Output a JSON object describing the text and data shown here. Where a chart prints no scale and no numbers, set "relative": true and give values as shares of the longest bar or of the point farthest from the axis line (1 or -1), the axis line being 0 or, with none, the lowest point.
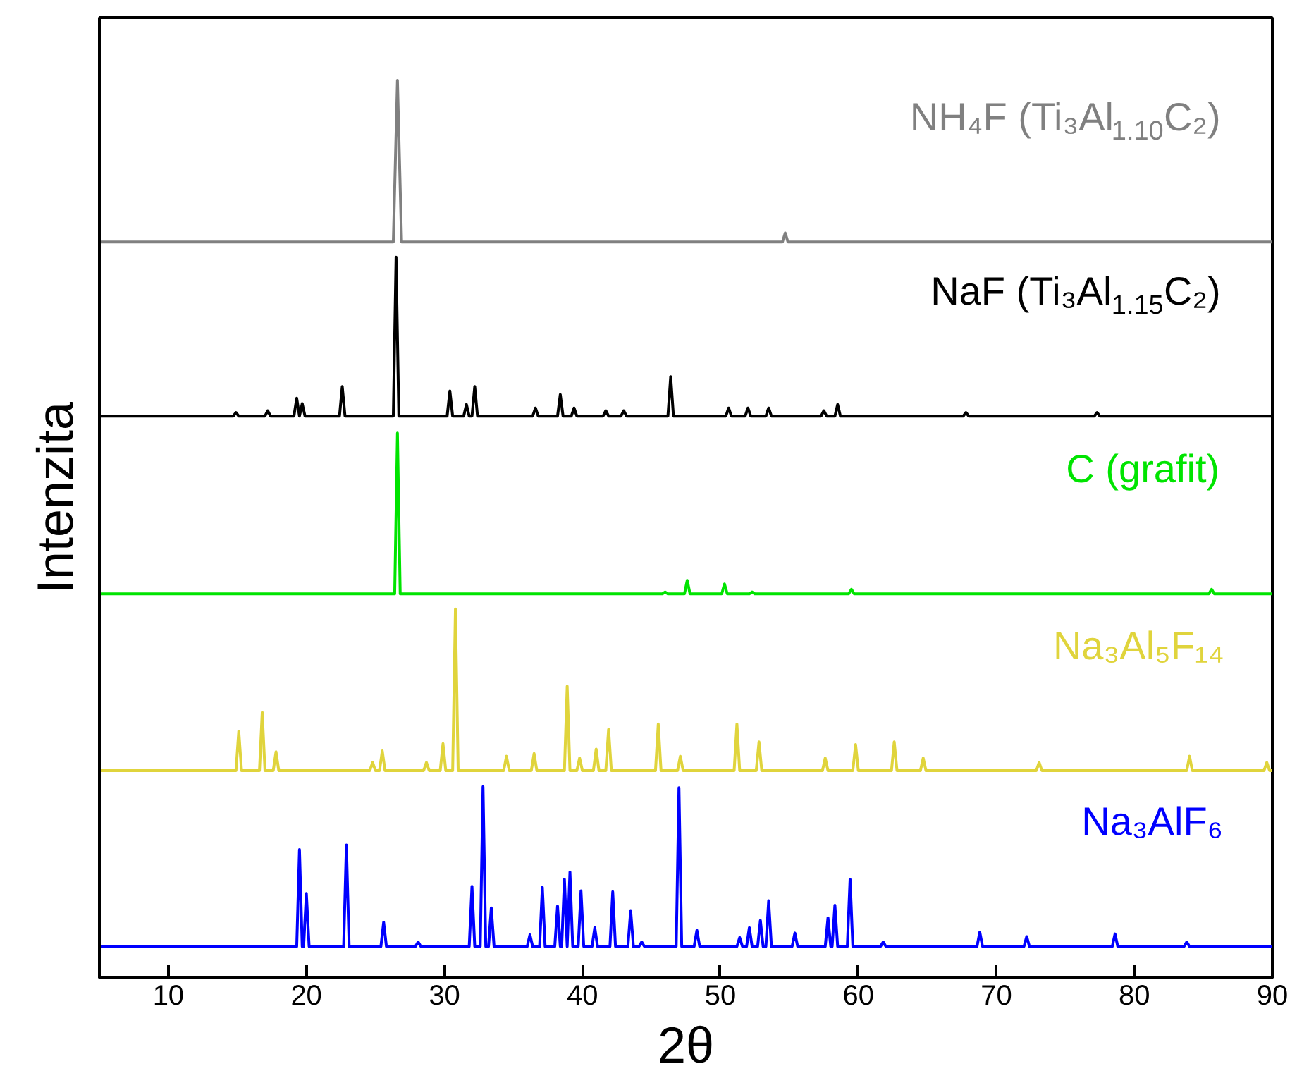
{
  "chart_data": {
    "type": "line",
    "relative": true,
    "xlabel": "2θ",
    "ylabel": "Intenzita",
    "xlim": [
      5,
      90
    ],
    "xticks": [
      10,
      20,
      30,
      40,
      50,
      60,
      70,
      80,
      90
    ],
    "series": [
      {
        "name": "NH₄F (Ti₃Al$_{1.10}$C₂)",
        "color": "#808080",
        "x": [
          5,
          26.3,
          26.6,
          26.9,
          54.5,
          54.7,
          54.9,
          90
        ],
        "values": [
          0.82,
          0.82,
          1.0,
          0.82,
          0.82,
          0.83,
          0.82,
          0.82
        ]
      },
      {
        "name": "NaF (Ti₃Al$_{1.15}$C₂)",
        "color": "#000000",
        "x": [
          5,
          14.7,
          14.9,
          15.1,
          17.0,
          17.2,
          17.4,
          19.1,
          19.3,
          19.5,
          19.5,
          19.7,
          19.9,
          22.4,
          22.6,
          22.8,
          26.3,
          26.5,
          26.7,
          30.2,
          30.4,
          30.6,
          31.4,
          31.6,
          31.8,
          32.0,
          32.2,
          32.4,
          36.4,
          36.6,
          36.8,
          38.2,
          38.4,
          38.6,
          39.2,
          39.4,
          39.6,
          41.5,
          41.7,
          41.9,
          42.8,
          43.0,
          43.2,
          46.2,
          46.4,
          46.6,
          50.4,
          50.6,
          50.8,
          51.8,
          52.0,
          52.2,
          53.3,
          53.5,
          53.7,
          57.3,
          57.5,
          57.7,
          58.3,
          58.5,
          58.7,
          67.6,
          67.8,
          68.0,
          77.1,
          77.3,
          77.5,
          90
        ],
        "values": [
          0.626,
          0.626,
          0.63,
          0.626,
          0.626,
          0.632,
          0.626,
          0.626,
          0.646,
          0.626,
          0.626,
          0.64,
          0.626,
          0.626,
          0.659,
          0.626,
          0.626,
          0.803,
          0.626,
          0.626,
          0.654,
          0.626,
          0.626,
          0.639,
          0.626,
          0.626,
          0.659,
          0.626,
          0.626,
          0.635,
          0.626,
          0.626,
          0.65,
          0.626,
          0.626,
          0.635,
          0.626,
          0.626,
          0.632,
          0.626,
          0.626,
          0.632,
          0.626,
          0.626,
          0.67,
          0.626,
          0.626,
          0.635,
          0.626,
          0.626,
          0.635,
          0.626,
          0.626,
          0.635,
          0.626,
          0.626,
          0.632,
          0.626,
          0.626,
          0.639,
          0.626,
          0.626,
          0.63,
          0.626,
          0.626,
          0.63,
          0.626,
          0.626
        ]
      },
      {
        "name": "C (grafit)",
        "color": "#00e400",
        "x": [
          5,
          26.4,
          26.6,
          26.8,
          45.8,
          46.0,
          46.2,
          47.4,
          47.6,
          47.8,
          50.1,
          50.3,
          50.5,
          52.1,
          52.3,
          52.5,
          59.3,
          59.5,
          59.7,
          85.4,
          85.6,
          85.8,
          90
        ],
        "values": [
          0.428,
          0.428,
          0.607,
          0.428,
          0.428,
          0.43,
          0.428,
          0.428,
          0.443,
          0.428,
          0.428,
          0.439,
          0.428,
          0.428,
          0.43,
          0.428,
          0.428,
          0.433,
          0.428,
          0.428,
          0.433,
          0.428,
          0.428
        ]
      },
      {
        "name": "Na₃Al₅F₁₄",
        "color": "#e0d43c",
        "x": [
          5,
          14.9,
          15.1,
          15.3,
          16.6,
          16.8,
          17.0,
          17.6,
          17.8,
          18.0,
          24.6,
          24.8,
          25.0,
          25.3,
          25.5,
          25.7,
          28.5,
          28.7,
          28.9,
          29.7,
          29.9,
          30.1,
          30.6,
          30.8,
          31.0,
          34.3,
          34.5,
          34.7,
          36.3,
          36.5,
          36.7,
          38.7,
          38.9,
          39.1,
          39.6,
          39.8,
          40.0,
          40.8,
          41.0,
          41.2,
          41.7,
          41.9,
          42.1,
          45.3,
          45.5,
          45.7,
          46.9,
          47.1,
          47.3,
          51.0,
          51.2,
          51.4,
          52.6,
          52.8,
          53.0,
          57.4,
          57.6,
          57.8,
          59.6,
          59.8,
          60.0,
          62.4,
          62.6,
          62.8,
          64.5,
          64.7,
          64.9,
          72.9,
          73.1,
          73.3,
          83.8,
          84.0,
          84.2,
          89.4,
          89.6,
          89.8,
          90
        ],
        "values": [
          0.231,
          0.231,
          0.275,
          0.231,
          0.231,
          0.296,
          0.231,
          0.231,
          0.252,
          0.231,
          0.231,
          0.24,
          0.231,
          0.231,
          0.253,
          0.231,
          0.231,
          0.24,
          0.231,
          0.231,
          0.261,
          0.231,
          0.231,
          0.411,
          0.231,
          0.231,
          0.247,
          0.231,
          0.231,
          0.25,
          0.231,
          0.231,
          0.325,
          0.231,
          0.231,
          0.245,
          0.231,
          0.231,
          0.255,
          0.231,
          0.231,
          0.277,
          0.231,
          0.231,
          0.283,
          0.231,
          0.231,
          0.247,
          0.231,
          0.231,
          0.283,
          0.231,
          0.231,
          0.263,
          0.231,
          0.231,
          0.245,
          0.231,
          0.231,
          0.26,
          0.231,
          0.231,
          0.263,
          0.231,
          0.231,
          0.245,
          0.231,
          0.231,
          0.24,
          0.231,
          0.231,
          0.247,
          0.231,
          0.231,
          0.24,
          0.231,
          0.231
        ]
      },
      {
        "name": "Na₃AlF₆",
        "color": "#0000ff",
        "x": [
          5,
          19.3,
          19.5,
          19.7,
          19.8,
          20.0,
          20.2,
          22.7,
          22.9,
          23.1,
          25.4,
          25.6,
          25.8,
          27.9,
          28.1,
          28.3,
          31.8,
          32.0,
          32.2,
          32.6,
          32.8,
          33.0,
          33.2,
          33.4,
          33.6,
          36.0,
          36.2,
          36.4,
          36.9,
          37.1,
          37.3,
          38.0,
          38.2,
          38.4,
          38.5,
          38.7,
          38.9,
          38.9,
          39.1,
          39.3,
          39.7,
          39.9,
          40.1,
          40.7,
          40.9,
          41.1,
          42.0,
          42.2,
          42.4,
          43.3,
          43.5,
          43.7,
          44.1,
          44.3,
          44.5,
          46.8,
          47.0,
          47.2,
          48.1,
          48.3,
          48.5,
          51.2,
          51.4,
          51.6,
          51.9,
          52.1,
          52.3,
          52.7,
          52.9,
          53.1,
          53.3,
          53.5,
          53.7,
          55.2,
          55.4,
          55.6,
          57.6,
          57.8,
          58.0,
          58.1,
          58.3,
          58.5,
          59.2,
          59.4,
          59.6,
          61.6,
          61.8,
          62.0,
          68.6,
          68.8,
          69.0,
          72.0,
          72.2,
          72.4,
          78.4,
          78.6,
          78.8,
          83.6,
          83.8,
          84.0,
          90
        ],
        "values": [
          0.035,
          0.035,
          0.143,
          0.035,
          0.035,
          0.094,
          0.035,
          0.035,
          0.148,
          0.035,
          0.035,
          0.062,
          0.035,
          0.035,
          0.04,
          0.035,
          0.035,
          0.102,
          0.035,
          0.035,
          0.213,
          0.035,
          0.035,
          0.078,
          0.035,
          0.035,
          0.048,
          0.035,
          0.035,
          0.101,
          0.035,
          0.035,
          0.08,
          0.035,
          0.035,
          0.11,
          0.035,
          0.035,
          0.118,
          0.035,
          0.035,
          0.097,
          0.035,
          0.035,
          0.056,
          0.035,
          0.035,
          0.096,
          0.035,
          0.035,
          0.075,
          0.035,
          0.035,
          0.04,
          0.035,
          0.035,
          0.212,
          0.035,
          0.035,
          0.053,
          0.035,
          0.035,
          0.045,
          0.035,
          0.035,
          0.056,
          0.035,
          0.035,
          0.064,
          0.035,
          0.035,
          0.086,
          0.035,
          0.035,
          0.05,
          0.035,
          0.035,
          0.067,
          0.035,
          0.035,
          0.081,
          0.035,
          0.035,
          0.11,
          0.035,
          0.035,
          0.04,
          0.035,
          0.035,
          0.051,
          0.035,
          0.035,
          0.046,
          0.035,
          0.035,
          0.049,
          0.035,
          0.035,
          0.04,
          0.035,
          0.035
        ]
      }
    ]
  }
}
